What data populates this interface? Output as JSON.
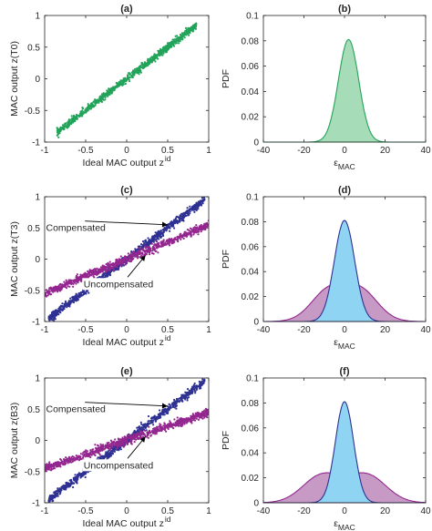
{
  "colors": {
    "green": "#22a35a",
    "green_fill": "#a6dcb7",
    "blue": "#2e3192",
    "purple": "#93278f",
    "blue_fill": "#8fd4f2",
    "purple_fill": "#c79ac6",
    "axis": "#262626"
  },
  "chart_data": [
    {
      "id": "a",
      "type": "scatter",
      "title": "(a)",
      "xlabel": "Ideal  MAC output z",
      "xlabel_sup": "id",
      "ylabel": "MAC output z(T0)",
      "xlim": [
        -1,
        1
      ],
      "ylim": [
        -1,
        1
      ],
      "xticks": [
        "-1",
        "-0.5",
        "0",
        "0.5",
        "1"
      ],
      "yticks": [
        "1",
        "0.5",
        "0",
        "-0.5",
        "-1"
      ],
      "series": [
        {
          "slope": 1.0,
          "spread": 0.06,
          "x_range": [
            -0.85,
            0.85
          ],
          "color_key": "green"
        }
      ],
      "annotations": []
    },
    {
      "id": "b",
      "type": "area",
      "title": "(b)",
      "xlabel": "ε",
      "xlabel_sub": "MAC",
      "ylabel": "PDF",
      "xlim": [
        -40,
        40
      ],
      "ylim": [
        0,
        0.1
      ],
      "xticks": [
        "-40",
        "-20",
        "0",
        "20",
        "40"
      ],
      "yticks": [
        "0.1",
        "0.08",
        "0.06",
        "0.04",
        "0.02",
        "0"
      ],
      "series": [
        {
          "mu": 2,
          "sigma": 5,
          "peak": 0.081,
          "color_key": "green",
          "fill_key": "green_fill"
        }
      ]
    },
    {
      "id": "c",
      "type": "scatter",
      "title": "(c)",
      "xlabel": "Ideal  MAC output z",
      "xlabel_sup": "id",
      "ylabel": "MAC output z(T3)",
      "xlim": [
        -1,
        1
      ],
      "ylim": [
        -1,
        1
      ],
      "xticks": [
        "-1",
        "-0.5",
        "0",
        "0.5",
        "1"
      ],
      "yticks": [
        "1",
        "0.5",
        "0",
        "-0.5",
        "-1"
      ],
      "series": [
        {
          "name": "Compensated",
          "slope": 1.0,
          "spread": 0.07,
          "x_range": [
            -0.95,
            0.95
          ],
          "color_key": "blue"
        },
        {
          "name": "Uncompensated",
          "slope": 0.55,
          "spread": 0.07,
          "x_range": [
            -1.0,
            1.0
          ],
          "color_key": "purple"
        }
      ],
      "annotations": [
        {
          "text": "Compensated",
          "tx": -0.62,
          "ty": 0.45,
          "ax": 0.5,
          "ay": 0.55
        },
        {
          "text": "Uncompensated",
          "tx": -0.1,
          "ty": -0.45,
          "ax": 0.23,
          "ay": 0.06
        }
      ]
    },
    {
      "id": "d",
      "type": "area",
      "title": "(d)",
      "xlabel": "ε",
      "xlabel_sub": "MAC",
      "ylabel": "PDF",
      "xlim": [
        -40,
        40
      ],
      "ylim": [
        0,
        0.1
      ],
      "xticks": [
        "-40",
        "-20",
        "0",
        "20",
        "40"
      ],
      "yticks": [
        "0.1",
        "0.08",
        "0.06",
        "0.04",
        "0.02",
        "0"
      ],
      "series": [
        {
          "type": "bimodal",
          "mus": [
            -8,
            8
          ],
          "sigma": 8.5,
          "peak": 0.031,
          "color_key": "purple",
          "fill_key": "purple_fill"
        },
        {
          "mu": 0,
          "sigma": 5,
          "peak": 0.081,
          "color_key": "blue",
          "fill_key": "blue_fill"
        }
      ]
    },
    {
      "id": "e",
      "type": "scatter",
      "title": "(e)",
      "xlabel": "Ideal  MAC output z",
      "xlabel_sup": "id",
      "ylabel": "MAC output z(B3)",
      "xlim": [
        -1,
        1
      ],
      "ylim": [
        -1,
        1
      ],
      "xticks": [
        "-1",
        "-0.5",
        "0",
        "0.5",
        "1"
      ],
      "yticks": [
        "1",
        "0.5",
        "0",
        "-0.5",
        "-1"
      ],
      "series": [
        {
          "name": "Compensated",
          "slope": 1.0,
          "spread": 0.07,
          "x_range": [
            -0.95,
            0.95
          ],
          "color_key": "blue"
        },
        {
          "name": "Uncompensated",
          "slope": 0.45,
          "spread": 0.07,
          "x_range": [
            -1.0,
            1.0
          ],
          "color_key": "purple"
        }
      ],
      "annotations": [
        {
          "text": "Compensated",
          "tx": -0.62,
          "ty": 0.45,
          "ax": 0.5,
          "ay": 0.55
        },
        {
          "text": "Uncompensated",
          "tx": -0.1,
          "ty": -0.45,
          "ax": 0.23,
          "ay": 0.06
        }
      ]
    },
    {
      "id": "f",
      "type": "area",
      "title": "(f)",
      "xlabel": "ε",
      "xlabel_sub": "MAC",
      "ylabel": "PDF",
      "xlim": [
        -40,
        40
      ],
      "ylim": [
        0,
        0.1
      ],
      "xticks": [
        "-40",
        "-20",
        "0",
        "20",
        "40"
      ],
      "yticks": [
        "0.1",
        "0.08",
        "0.06",
        "0.04",
        "0.02",
        "0"
      ],
      "series": [
        {
          "type": "bimodal",
          "mus": [
            -11,
            11
          ],
          "sigma": 9.5,
          "peak": 0.024,
          "color_key": "purple",
          "fill_key": "purple_fill"
        },
        {
          "mu": 0,
          "sigma": 4.5,
          "peak": 0.081,
          "color_key": "blue",
          "fill_key": "blue_fill"
        }
      ]
    }
  ]
}
